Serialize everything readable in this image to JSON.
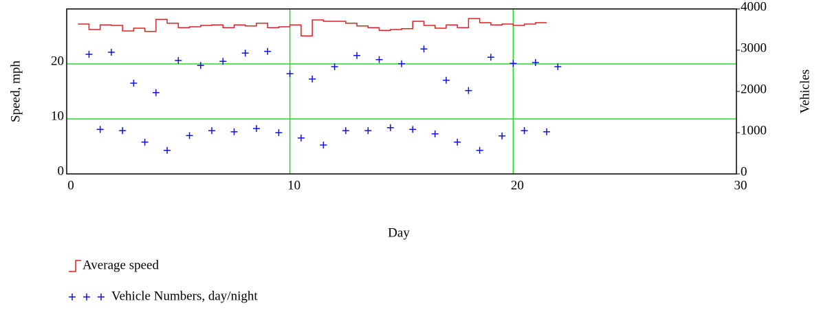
{
  "chart_data": {
    "type": "line",
    "xlabel": "Day",
    "ylabel": "Speed, mph",
    "y2label": "Vehicles",
    "xlim": [
      0,
      30
    ],
    "xticks": [
      0,
      10,
      20,
      30
    ],
    "ylim": [
      0,
      30
    ],
    "yticks": [
      0,
      10,
      20
    ],
    "y2lim": [
      0,
      4000
    ],
    "y2ticks": [
      0,
      1000,
      2000,
      3000,
      4000
    ],
    "grid": true,
    "legend": "bottom-left",
    "series": [
      {
        "name": "Average speed",
        "type": "step",
        "color": "#e02020",
        "axis": "y",
        "x": [
          0.5,
          1,
          1.5,
          2,
          2.5,
          3,
          3.5,
          4,
          4.5,
          5,
          5.5,
          6,
          6.5,
          7,
          7.5,
          8,
          8.5,
          9,
          9.5,
          10,
          10.5,
          11,
          11.5,
          12,
          12.5,
          13,
          13.5,
          14,
          14.5,
          15,
          15.5,
          16,
          16.5,
          17,
          17.5,
          18,
          18.5,
          19,
          19.5,
          20,
          20.5,
          21
        ],
        "values": [
          27.25,
          26.25,
          27.1,
          27,
          26,
          26.5,
          25.9,
          28.1,
          27.4,
          26.6,
          26.75,
          27,
          27.1,
          26.6,
          27.1,
          26.9,
          27.4,
          26.6,
          26.75,
          27.1,
          25.1,
          28,
          27.75,
          27.75,
          27.4,
          26.9,
          26.6,
          26.1,
          26.25,
          26.4,
          27.75,
          27,
          26.5,
          27.1,
          26.6,
          28.25,
          27.5,
          27.1,
          27.25,
          27,
          27.25,
          27.5
        ]
      },
      {
        "name": "Vehicle Numbers, day/night",
        "type": "scatter",
        "color": "#1010e0",
        "axis": "y2",
        "x": [
          1,
          1.5,
          2,
          2.5,
          3,
          3.5,
          4,
          4.5,
          5,
          5.5,
          6,
          6.5,
          7,
          7.5,
          8,
          8.5,
          9,
          9.5,
          10,
          10.5,
          11,
          11.5,
          12,
          12.5,
          13,
          13.5,
          14,
          14.5,
          15,
          15.5,
          16,
          16.5,
          17,
          17.5,
          18,
          18.5,
          19,
          19.5,
          20,
          20.5,
          21,
          21.5,
          22
        ],
        "values": [
          2900,
          1080,
          2950,
          1050,
          2200,
          770,
          1970,
          570,
          2750,
          930,
          2630,
          1050,
          2730,
          1020,
          2930,
          1100,
          2970,
          1000,
          2430,
          870,
          2300,
          700,
          2600,
          1050,
          2870,
          1050,
          2770,
          1120,
          2670,
          1080,
          3030,
          970,
          2270,
          770,
          2020,
          570,
          2830,
          920,
          2680,
          1050,
          2700,
          1020,
          2600
        ]
      }
    ]
  }
}
